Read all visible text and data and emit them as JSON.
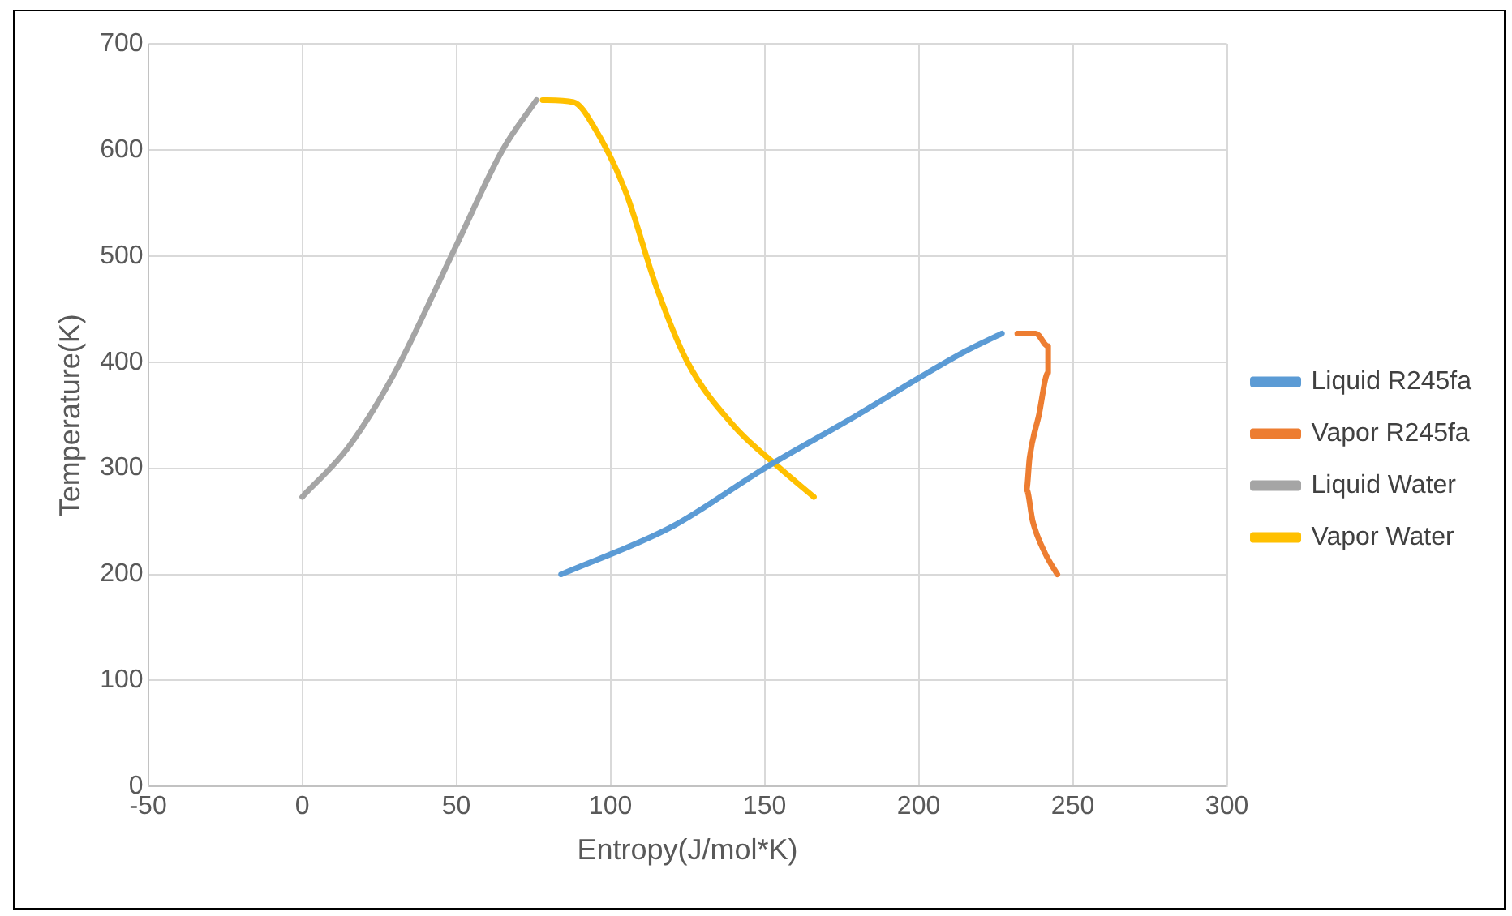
{
  "chart_data": {
    "type": "line",
    "xlabel": "Entropy(J/mol*K)",
    "ylabel": "Temperature(K)",
    "xlim": [
      -50,
      300
    ],
    "xticks": [
      -50,
      0,
      50,
      100,
      150,
      200,
      250,
      300
    ],
    "ylim": [
      0,
      700
    ],
    "yticks": [
      0,
      100,
      200,
      300,
      400,
      500,
      600,
      700
    ],
    "grid": true,
    "legend": "right",
    "marker": "none",
    "line_style": "solid",
    "series": [
      {
        "name": "Liquid R245fa",
        "color": "#5b9bd5",
        "x": [
          84,
          120,
          150,
          180,
          200,
          215,
          227
        ],
        "values": [
          200,
          245,
          300,
          350,
          385,
          410,
          427
        ]
      },
      {
        "name": "Vapor R245fa",
        "color": "#ed7d31",
        "x": [
          232,
          238,
          242,
          242,
          239,
          236,
          235,
          237,
          241,
          245
        ],
        "values": [
          427,
          427,
          415,
          390,
          350,
          310,
          280,
          250,
          220,
          200
        ]
      },
      {
        "name": "Liquid Water",
        "color": "#a5a5a5",
        "x": [
          0,
          15,
          30,
          50,
          65,
          76
        ],
        "values": [
          273,
          320,
          390,
          510,
          600,
          647
        ]
      },
      {
        "name": "Vapor Water",
        "color": "#ffc000",
        "x": [
          78,
          88,
          95,
          105,
          115,
          125,
          140,
          155,
          166
        ],
        "values": [
          647,
          645,
          620,
          560,
          470,
          400,
          340,
          300,
          273
        ]
      }
    ]
  }
}
